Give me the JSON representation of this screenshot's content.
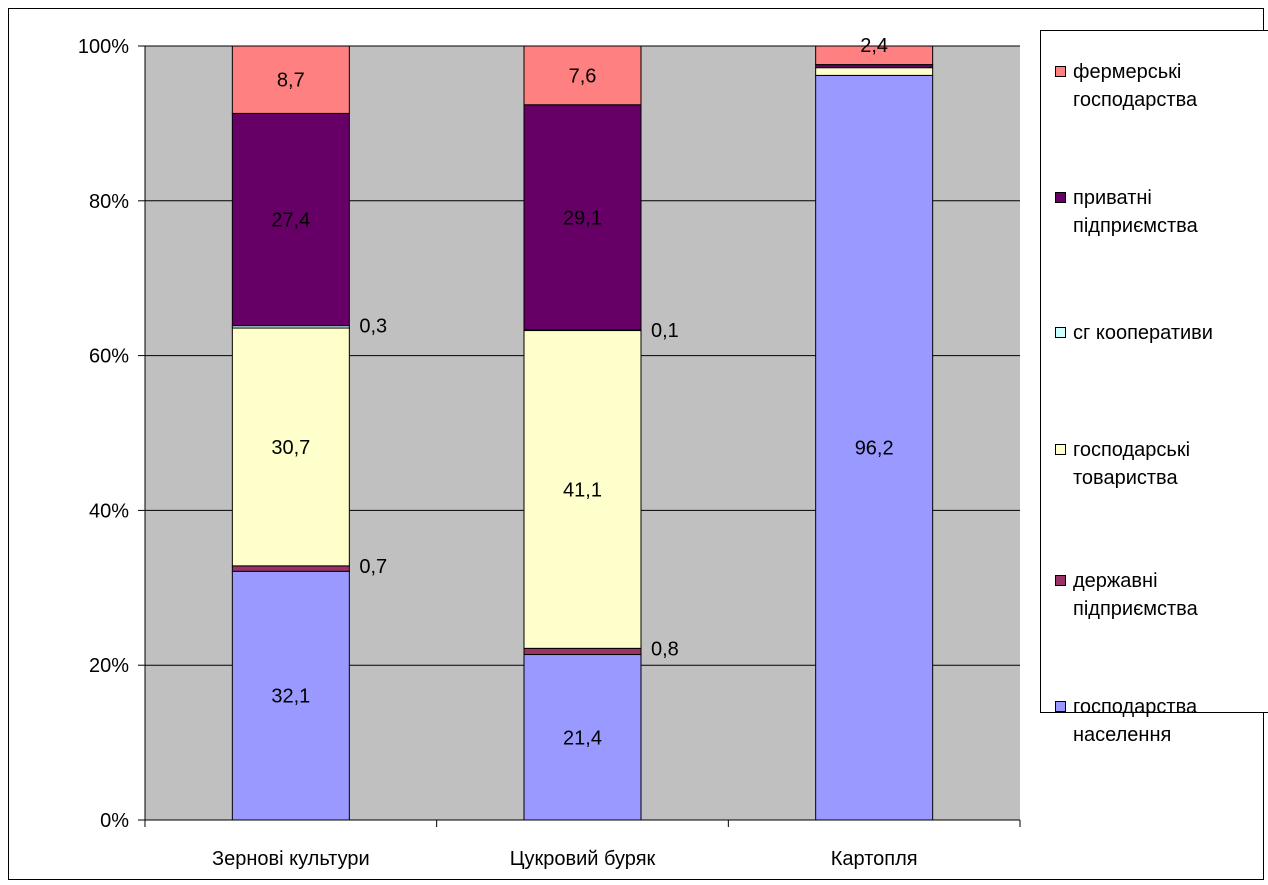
{
  "chart_data": {
    "type": "bar",
    "stacked": true,
    "normalized_percent": true,
    "categories": [
      "Зернові культури",
      "Цукровий буряк",
      "Картопля"
    ],
    "y_ticks": [
      "0%",
      "20%",
      "40%",
      "60%",
      "80%",
      "100%"
    ],
    "ylim": [
      0,
      100
    ],
    "grid": true,
    "plot_background": "#c0c0c0",
    "legend_position": "right",
    "series": [
      {
        "name": "господарства населення",
        "color": "#9999ff",
        "values": [
          32.1,
          21.4,
          96.2
        ],
        "labels": [
          "32,1",
          "21,4",
          "96,2"
        ]
      },
      {
        "name": "державні підприємства",
        "color": "#993366",
        "values": [
          0.7,
          0.8,
          0.0
        ],
        "labels": [
          "0,7",
          "0,8",
          ""
        ]
      },
      {
        "name": "господарські товариства",
        "color": "#ffffcc",
        "values": [
          30.7,
          41.1,
          1.0
        ],
        "labels": [
          "30,7",
          "41,1",
          ""
        ]
      },
      {
        "name": "сг кооперативи",
        "color": "#ccffff",
        "values": [
          0.3,
          0.1,
          0.0
        ],
        "labels": [
          "0,3",
          "0,1",
          ""
        ]
      },
      {
        "name": "приватні підприємства",
        "color": "#660066",
        "values": [
          27.4,
          29.1,
          0.4
        ],
        "labels": [
          "27,4",
          "29,1",
          ""
        ]
      },
      {
        "name": "фермерські господарства",
        "color": "#ff8080",
        "values": [
          8.7,
          7.6,
          2.4
        ],
        "labels": [
          "8,7",
          "7,6",
          "2,4"
        ]
      }
    ],
    "legend": [
      {
        "label": "фермерські\nгосподарства",
        "color": "#ff8080"
      },
      {
        "label": "приватні\nпідприємства",
        "color": "#660066"
      },
      {
        "label": "сг кооперативи",
        "color": "#ccffff"
      },
      {
        "label": "господарські\nтовариства",
        "color": "#ffffcc"
      },
      {
        "label": "державні\nпідприємства",
        "color": "#993366"
      },
      {
        "label": "господарства\nнаселення",
        "color": "#9999ff"
      }
    ]
  }
}
